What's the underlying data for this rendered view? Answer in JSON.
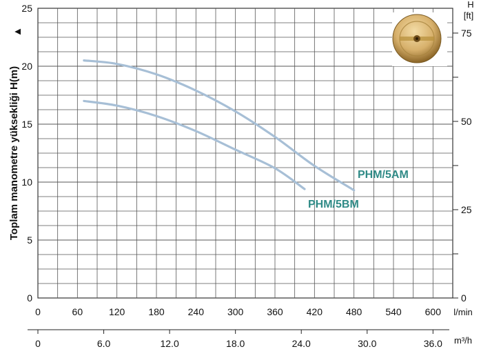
{
  "chart_data": {
    "type": "line",
    "ylabel": "Toplam manometre yüksekliği  H(m)",
    "ylabel_arrow": "▲",
    "ylim": [
      0,
      25
    ],
    "yticks": [
      "0",
      "5",
      "10",
      "15",
      "20",
      "25"
    ],
    "right_axis": {
      "label_line1": "H",
      "label_line2": "[ft]",
      "ticks": [
        {
          "label": "0",
          "ft": 0
        },
        {
          "label": "25",
          "ft": 25
        },
        {
          "label": "50",
          "ft": 50
        },
        {
          "label": "75",
          "ft": 75
        }
      ],
      "minor_ft": [
        12.5,
        37.5,
        62.5
      ]
    },
    "x_axis_lmin": {
      "unit": "l/min",
      "xlim": [
        0,
        630
      ],
      "ticks": [
        "0",
        "60",
        "120",
        "180",
        "240",
        "300",
        "360",
        "420",
        "480",
        "540",
        "600"
      ]
    },
    "x_axis_m3h": {
      "unit": "m³/h",
      "ticks": [
        {
          "label": "0",
          "value": 0
        },
        {
          "label": "6.0",
          "value": 6
        },
        {
          "label": "12.0",
          "value": 12
        },
        {
          "label": "18.0",
          "value": 18
        },
        {
          "label": "24.0",
          "value": 24
        },
        {
          "label": "30.0",
          "value": 30
        },
        {
          "label": "36.0",
          "value": 36
        }
      ]
    },
    "grid": true,
    "series": [
      {
        "name": "PHM/5AM",
        "color": "#a7bfd6",
        "label_color": "#2f8a86",
        "points": [
          [
            70,
            20.5
          ],
          [
            120,
            20.2
          ],
          [
            180,
            19.3
          ],
          [
            240,
            17.9
          ],
          [
            300,
            16.1
          ],
          [
            360,
            13.9
          ],
          [
            420,
            11.4
          ],
          [
            480,
            9.3
          ]
        ]
      },
      {
        "name": "PHM/5BM",
        "color": "#a7bfd6",
        "label_color": "#2f8a86",
        "points": [
          [
            70,
            17.0
          ],
          [
            120,
            16.6
          ],
          [
            180,
            15.7
          ],
          [
            240,
            14.4
          ],
          [
            300,
            12.8
          ],
          [
            360,
            11.2
          ],
          [
            405,
            9.4
          ]
        ]
      }
    ]
  },
  "image": {
    "name": "impeller-photo",
    "colors": {
      "disc_light": "#e2c488",
      "disc_dark": "#8a6426",
      "hub": "#b8913e"
    }
  }
}
